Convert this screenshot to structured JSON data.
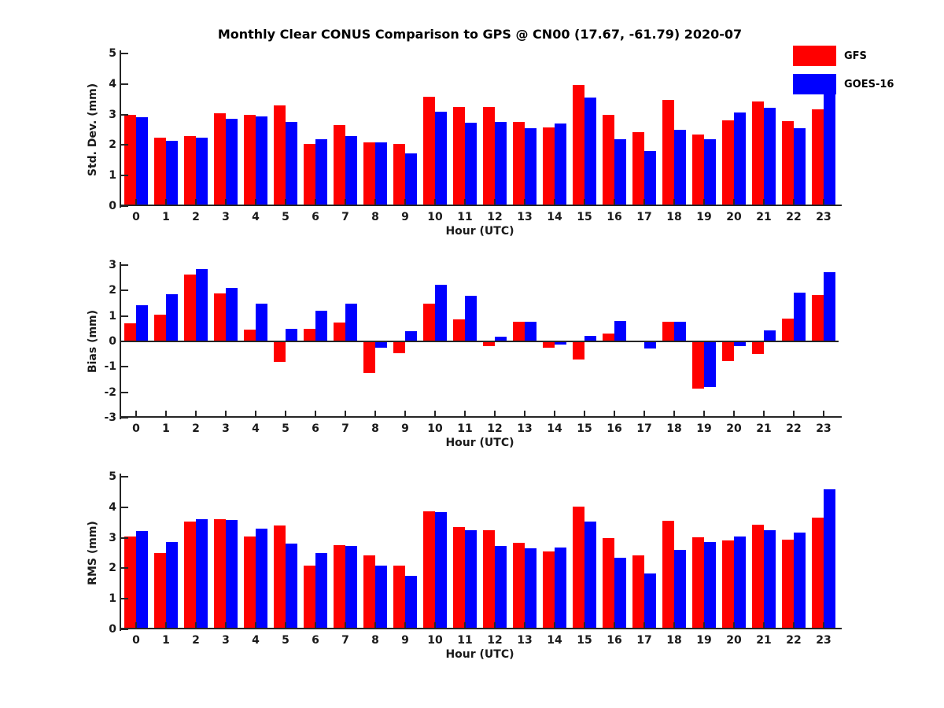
{
  "figure": {
    "title": "Monthly Clear CONUS Comparison to GPS @ CN00 (17.67, -61.79) 2020-07",
    "background_color": "#ffffff",
    "axis_color": "#262626",
    "text_color": "#1a1a1a"
  },
  "legend": {
    "position": "top-right",
    "entries": [
      {
        "label": "GFS",
        "color": "#ff0000"
      },
      {
        "label": "GOES-16",
        "color": "#0000ff"
      }
    ]
  },
  "chart_data": [
    {
      "type": "bar",
      "panel": "stddev",
      "ylabel": "Std. Dev. (mm)",
      "xlabel": "Hour (UTC)",
      "ylim": [
        0,
        5
      ],
      "yticks": [
        0,
        1,
        2,
        3,
        4,
        5
      ],
      "grid": false,
      "categories": [
        "0",
        "1",
        "2",
        "3",
        "4",
        "5",
        "6",
        "7",
        "8",
        "9",
        "10",
        "11",
        "12",
        "13",
        "14",
        "15",
        "16",
        "17",
        "18",
        "19",
        "20",
        "21",
        "22",
        "23"
      ],
      "series": [
        {
          "name": "GFS",
          "color": "#ff0000",
          "values": [
            3.0,
            2.25,
            2.3,
            3.05,
            3.0,
            3.3,
            2.03,
            2.65,
            2.1,
            2.03,
            3.57,
            3.25,
            3.25,
            2.77,
            2.57,
            3.97,
            3.0,
            2.42,
            3.47,
            2.35,
            2.82,
            3.43,
            2.78,
            3.17
          ]
        },
        {
          "name": "GOES-16",
          "color": "#0000ff",
          "values": [
            2.9,
            2.15,
            2.25,
            2.87,
            2.95,
            2.75,
            2.18,
            2.3,
            2.1,
            1.72,
            3.1,
            2.72,
            2.75,
            2.55,
            2.7,
            3.55,
            2.2,
            1.8,
            2.5,
            2.18,
            3.07,
            3.23,
            2.55,
            3.72
          ]
        }
      ]
    },
    {
      "type": "bar",
      "panel": "bias",
      "ylabel": "Bias (mm)",
      "xlabel": "Hour (UTC)",
      "ylim": [
        -3,
        3
      ],
      "yticks": [
        -3,
        -2,
        -1,
        0,
        1,
        2,
        3
      ],
      "grid": false,
      "categories": [
        "0",
        "1",
        "2",
        "3",
        "4",
        "5",
        "6",
        "7",
        "8",
        "9",
        "10",
        "11",
        "12",
        "13",
        "14",
        "15",
        "16",
        "17",
        "18",
        "19",
        "20",
        "21",
        "22",
        "23"
      ],
      "series": [
        {
          "name": "GFS",
          "color": "#ff0000",
          "values": [
            0.7,
            1.05,
            2.62,
            1.88,
            0.45,
            -0.8,
            0.5,
            0.75,
            -1.25,
            -0.45,
            1.5,
            0.88,
            -0.19,
            0.77,
            -0.24,
            -0.7,
            0.3,
            -0.03,
            0.77,
            -1.85,
            -0.78,
            -0.48,
            0.9,
            1.82
          ]
        },
        {
          "name": "GOES-16",
          "color": "#0000ff",
          "values": [
            1.43,
            1.85,
            2.85,
            2.1,
            1.5,
            0.5,
            1.2,
            1.47,
            -0.25,
            0.4,
            2.22,
            1.78,
            0.18,
            0.77,
            -0.13,
            0.23,
            0.79,
            -0.29,
            0.77,
            -1.78,
            -0.18,
            0.42,
            1.92,
            2.72
          ]
        }
      ]
    },
    {
      "type": "bar",
      "panel": "rms",
      "ylabel": "RMS (mm)",
      "xlabel": "Hour (UTC)",
      "ylim": [
        0,
        5
      ],
      "yticks": [
        0,
        1,
        2,
        3,
        4,
        5
      ],
      "grid": false,
      "categories": [
        "0",
        "1",
        "2",
        "3",
        "4",
        "5",
        "6",
        "7",
        "8",
        "9",
        "10",
        "11",
        "12",
        "13",
        "14",
        "15",
        "16",
        "17",
        "18",
        "19",
        "20",
        "21",
        "22",
        "23"
      ],
      "series": [
        {
          "name": "GFS",
          "color": "#ff0000",
          "values": [
            3.05,
            2.5,
            3.52,
            3.6,
            3.05,
            3.4,
            2.08,
            2.77,
            2.43,
            2.08,
            3.87,
            3.35,
            3.25,
            2.83,
            2.55,
            4.02,
            2.98,
            2.42,
            3.55,
            3.02,
            2.92,
            3.43,
            2.95,
            3.65
          ]
        },
        {
          "name": "GOES-16",
          "color": "#0000ff",
          "values": [
            3.23,
            2.85,
            3.62,
            3.57,
            3.3,
            2.8,
            2.5,
            2.74,
            2.1,
            1.75,
            3.85,
            3.25,
            2.72,
            2.65,
            2.68,
            3.52,
            2.35,
            1.84,
            2.6,
            2.85,
            3.05,
            3.24,
            3.18,
            4.6
          ]
        }
      ]
    }
  ]
}
